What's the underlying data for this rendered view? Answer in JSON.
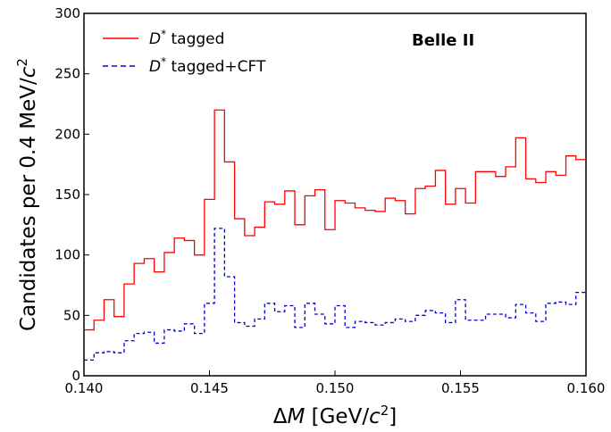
{
  "chart_data": {
    "type": "line",
    "step": true,
    "xlabel": {
      "prefix": "Δ",
      "var": "M",
      "unit_open": " [GeV/",
      "unit_c": "c",
      "unit_exp": "2",
      "unit_close": "]"
    },
    "ylabel": {
      "text": "Candidates per 0.4 MeV/",
      "c": "c",
      "exp": "2"
    },
    "xlim": [
      0.14,
      0.16
    ],
    "ylim": [
      0,
      300
    ],
    "x_ticks": [
      0.14,
      0.145,
      0.15,
      0.155,
      0.16
    ],
    "x_tick_labels": [
      "0.140",
      "0.145",
      "0.150",
      "0.155",
      "0.160"
    ],
    "y_ticks": [
      0,
      50,
      100,
      150,
      200,
      250,
      300
    ],
    "y_tick_labels": [
      "0",
      "50",
      "100",
      "150",
      "200",
      "250",
      "300"
    ],
    "bin_width": 0.0004,
    "annotation": "Belle II",
    "legend_position": "top-left",
    "series": [
      {
        "name": "D* tagged",
        "legend": {
          "sym": "D",
          "sup": "*",
          "rest": " tagged"
        },
        "color": "#ff0000",
        "dash": "solid",
        "values": [
          38,
          46,
          63,
          49,
          76,
          93,
          97,
          86,
          102,
          114,
          112,
          100,
          146,
          220,
          177,
          130,
          116,
          123,
          144,
          142,
          153,
          125,
          149,
          154,
          121,
          145,
          143,
          139,
          137,
          136,
          147,
          145,
          134,
          155,
          157,
          170,
          142,
          155,
          143,
          169,
          169,
          165,
          173,
          197,
          163,
          160,
          169,
          166,
          182,
          179
        ]
      },
      {
        "name": "D* tagged+CFT",
        "legend": {
          "sym": "D",
          "sup": "*",
          "rest": " tagged+CFT"
        },
        "color": "#0000dd",
        "dash": "dashed",
        "values": [
          13,
          19,
          20,
          19,
          29,
          35,
          36,
          27,
          38,
          37,
          43,
          35,
          60,
          122,
          82,
          44,
          41,
          47,
          60,
          53,
          58,
          40,
          60,
          51,
          43,
          58,
          40,
          45,
          44,
          42,
          44,
          47,
          45,
          50,
          54,
          52,
          44,
          63,
          46,
          46,
          51,
          51,
          48,
          59,
          52,
          45,
          60,
          61,
          59,
          69
        ]
      }
    ]
  }
}
